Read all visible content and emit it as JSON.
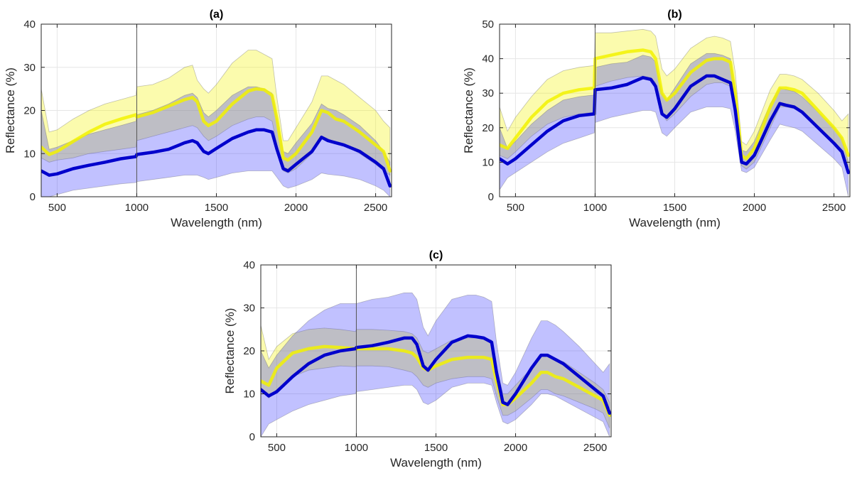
{
  "chart_data": [
    {
      "type": "line",
      "title": "(a)",
      "xlabel": "Wavelength (nm)",
      "ylabel": "Reflectance (%)",
      "xlim": [
        400,
        2600
      ],
      "ylim": [
        0,
        40
      ],
      "xticks": [
        "500",
        "1000",
        "1500",
        "2000",
        "2500"
      ],
      "yticks": [
        "0",
        "10",
        "20",
        "30",
        "40"
      ],
      "grid": true,
      "series": [
        {
          "color": "#f2f200",
          "x": [
            400,
            450,
            500,
            600,
            700,
            800,
            900,
            995,
            1000,
            1100,
            1200,
            1300,
            1350,
            1380,
            1420,
            1450,
            1500,
            1600,
            1700,
            1750,
            1800,
            1850,
            1880,
            1920,
            1950,
            2000,
            2100,
            2160,
            2200,
            2250,
            2300,
            2400,
            2500,
            2550,
            2590
          ],
          "mean": [
            11.5,
            9.8,
            10.5,
            12.8,
            15,
            16.8,
            18,
            19,
            18.5,
            19.5,
            21,
            22.5,
            23,
            22,
            17.5,
            16.5,
            17.5,
            21.5,
            24.5,
            25,
            24.8,
            23.5,
            18,
            9,
            8.5,
            10,
            15,
            20,
            19.5,
            18,
            17.5,
            15,
            12,
            10.5,
            6
          ],
          "upper": [
            25,
            15,
            15.5,
            18,
            20,
            21.5,
            22.5,
            23.5,
            25.5,
            26,
            27.5,
            30,
            30.5,
            27,
            25,
            24,
            26,
            31,
            34,
            34,
            33,
            32,
            23,
            13,
            13,
            16,
            22,
            28,
            28,
            27,
            26,
            23,
            20,
            17.5,
            16
          ],
          "lower": [
            9,
            8,
            8.5,
            9,
            10,
            10.5,
            11,
            11.5,
            13,
            14,
            15,
            16,
            16.5,
            16,
            14,
            13,
            14,
            16.5,
            18,
            18.5,
            18.5,
            17.5,
            12,
            6,
            5.5,
            6.5,
            10,
            14,
            13.5,
            12.5,
            12,
            10,
            7.5,
            6,
            5
          ]
        },
        {
          "color": "#0000cc",
          "x": [
            400,
            450,
            500,
            600,
            700,
            800,
            900,
            995,
            1000,
            1100,
            1200,
            1300,
            1350,
            1380,
            1420,
            1450,
            1500,
            1600,
            1700,
            1750,
            1800,
            1850,
            1880,
            1920,
            1950,
            2000,
            2100,
            2160,
            2200,
            2250,
            2300,
            2400,
            2500,
            2550,
            2590
          ],
          "mean": [
            6,
            5,
            5.3,
            6.5,
            7.3,
            8,
            8.8,
            9.3,
            9.8,
            10.3,
            11,
            12.5,
            13,
            12.5,
            10.5,
            10,
            11.2,
            13.5,
            15,
            15.5,
            15.5,
            15,
            11,
            6.5,
            6,
            7.5,
            10.5,
            13.8,
            13,
            12.5,
            12,
            10.5,
            8,
            6.5,
            2.5
          ],
          "upper": [
            20,
            11,
            11.5,
            13,
            14.5,
            15.5,
            16.5,
            17.5,
            19,
            20,
            21.5,
            23.5,
            24,
            23,
            19.5,
            18.5,
            20,
            23.5,
            25.5,
            25.5,
            25,
            24,
            18,
            10.5,
            10,
            12.5,
            17,
            21.5,
            20.5,
            20,
            19,
            16.5,
            13,
            10.5,
            8
          ],
          "lower": [
            0,
            0,
            0.5,
            1.5,
            2,
            2.5,
            3,
            3.3,
            3.5,
            4,
            4.5,
            5,
            5,
            5,
            4.5,
            4,
            4.5,
            5.5,
            6,
            6,
            6,
            6,
            4.5,
            2.5,
            2,
            2.5,
            4,
            5.5,
            5.2,
            5,
            4.8,
            4,
            2.5,
            1.5,
            0
          ]
        }
      ]
    },
    {
      "type": "line",
      "title": "(b)",
      "xlabel": "Wavelength (nm)",
      "ylabel": "Reflectance (%)",
      "xlim": [
        400,
        2600
      ],
      "ylim": [
        0,
        50
      ],
      "xticks": [
        "500",
        "1000",
        "1500",
        "2000",
        "2500"
      ],
      "yticks": [
        "0",
        "10",
        "20",
        "30",
        "40",
        "50"
      ],
      "grid": true,
      "series": [
        {
          "color": "#f2f200",
          "x": [
            400,
            450,
            500,
            600,
            700,
            800,
            900,
            995,
            1000,
            1100,
            1200,
            1300,
            1350,
            1380,
            1420,
            1450,
            1500,
            1600,
            1700,
            1750,
            1800,
            1850,
            1880,
            1920,
            1950,
            2000,
            2100,
            2160,
            2200,
            2250,
            2300,
            2400,
            2500,
            2550,
            2590
          ],
          "mean": [
            15,
            14,
            17,
            23,
            27.5,
            30,
            31,
            31.5,
            40,
            41,
            42,
            42.5,
            42,
            40,
            30,
            28,
            30,
            36,
            39.5,
            40,
            40,
            39,
            30,
            12,
            11,
            14,
            26,
            31.5,
            31.5,
            31,
            30,
            25,
            20,
            17,
            12
          ],
          "upper": [
            26,
            19,
            23,
            29,
            34,
            36.5,
            37.5,
            38,
            47.5,
            47.5,
            48,
            48.5,
            48,
            46.5,
            37,
            35,
            37,
            43,
            46,
            46.5,
            46,
            45,
            36,
            16,
            15,
            19,
            31,
            35.5,
            35.5,
            35,
            34,
            30,
            25,
            22,
            24
          ],
          "lower": [
            12,
            11,
            13,
            17.5,
            21,
            23,
            24,
            24.5,
            32,
            33.5,
            34.5,
            35,
            34.5,
            33,
            24,
            22,
            24,
            29,
            32.5,
            33,
            33,
            32,
            24,
            9,
            8,
            10,
            20,
            26,
            26,
            25.5,
            24.5,
            20.5,
            16,
            13,
            8
          ]
        },
        {
          "color": "#0000cc",
          "x": [
            400,
            450,
            500,
            600,
            700,
            800,
            900,
            995,
            1000,
            1100,
            1200,
            1300,
            1350,
            1380,
            1420,
            1450,
            1500,
            1600,
            1700,
            1750,
            1800,
            1850,
            1880,
            1920,
            1950,
            2000,
            2100,
            2160,
            2200,
            2250,
            2300,
            2400,
            2500,
            2550,
            2590
          ],
          "mean": [
            11,
            9.5,
            11,
            15,
            19,
            22,
            23.5,
            24,
            31,
            31.5,
            32.5,
            34.5,
            34,
            32,
            24,
            23,
            25.5,
            32,
            35,
            35,
            34,
            33,
            25,
            10,
            9.5,
            12,
            22,
            27,
            26.5,
            26,
            24.5,
            20,
            15.5,
            13,
            7
          ],
          "upper": [
            20,
            14,
            16,
            21,
            25,
            28,
            29,
            29.5,
            37.5,
            38.5,
            39,
            41,
            40.5,
            39,
            30,
            28,
            31.5,
            38.5,
            41.5,
            41.5,
            41,
            40,
            30,
            13.5,
            13,
            16,
            27,
            31.5,
            31,
            30.5,
            29,
            24.5,
            20,
            17,
            10
          ],
          "lower": [
            2,
            5.5,
            7,
            10,
            13,
            15.5,
            17,
            18.5,
            21.5,
            23,
            24,
            25,
            25,
            24.5,
            18.5,
            17.5,
            20,
            24.5,
            26,
            26,
            26,
            25.5,
            19,
            7.5,
            7,
            8.5,
            16.5,
            21,
            20.5,
            20,
            19,
            15,
            11,
            8.5,
            0
          ]
        }
      ]
    },
    {
      "type": "line",
      "title": "(c)",
      "xlabel": "Wavelength (nm)",
      "ylabel": "Reflectance (%)",
      "xlim": [
        400,
        2600
      ],
      "ylim": [
        0,
        40
      ],
      "xticks": [
        "500",
        "1000",
        "1500",
        "2000",
        "2500"
      ],
      "yticks": [
        "0",
        "10",
        "20",
        "30",
        "40"
      ],
      "grid": true,
      "series": [
        {
          "color": "#f2f200",
          "x": [
            400,
            450,
            500,
            600,
            700,
            800,
            900,
            995,
            1000,
            1100,
            1200,
            1300,
            1350,
            1380,
            1420,
            1450,
            1500,
            1600,
            1700,
            1750,
            1800,
            1850,
            1880,
            1920,
            1950,
            2000,
            2100,
            2160,
            2200,
            2250,
            2300,
            2400,
            2500,
            2550,
            2590
          ],
          "mean": [
            13,
            12,
            16,
            19.5,
            20.5,
            21,
            20.8,
            20.5,
            20.5,
            20.5,
            20.5,
            20,
            19.5,
            18.5,
            16,
            15.5,
            16.5,
            18,
            18.5,
            18.5,
            18.5,
            18,
            13,
            7.5,
            7.5,
            9,
            12.5,
            15,
            15,
            14,
            13.5,
            11.5,
            9.5,
            8.5,
            5
          ],
          "upper": [
            26,
            18,
            21,
            24,
            25,
            25.3,
            25,
            24.5,
            25,
            25,
            24.8,
            24.5,
            24,
            23,
            20,
            19.5,
            20.5,
            22.5,
            23,
            23,
            23,
            22.5,
            16.5,
            10,
            10,
            12,
            16,
            19,
            19,
            18,
            17.5,
            15,
            12.5,
            11,
            8
          ],
          "lower": [
            11,
            9,
            11,
            14,
            15.5,
            16,
            16.5,
            16.3,
            16.5,
            16.5,
            16.3,
            15.5,
            15,
            14,
            12,
            11.5,
            12.5,
            13.5,
            14,
            14,
            14,
            13.5,
            9.5,
            5,
            5,
            6,
            9,
            11,
            11,
            10,
            9.5,
            8,
            6.5,
            5.5,
            2
          ]
        },
        {
          "color": "#0000cc",
          "x": [
            400,
            450,
            500,
            600,
            700,
            800,
            900,
            995,
            1000,
            1100,
            1200,
            1300,
            1350,
            1380,
            1420,
            1450,
            1500,
            1600,
            1700,
            1750,
            1800,
            1850,
            1880,
            1920,
            1950,
            2000,
            2100,
            2160,
            2200,
            2250,
            2300,
            2400,
            2500,
            2550,
            2590
          ],
          "mean": [
            11,
            9.5,
            10.5,
            14,
            17,
            19,
            20,
            20.5,
            20.8,
            21.2,
            22,
            23,
            23,
            21.5,
            16.5,
            15.5,
            18,
            22,
            23.5,
            23.3,
            23,
            22,
            15,
            8,
            7.5,
            10,
            16,
            19,
            19,
            18,
            17,
            14,
            11,
            9.5,
            5.5
          ],
          "upper": [
            20,
            16,
            19,
            23.5,
            27,
            29.5,
            31,
            31,
            31,
            32,
            32.5,
            33.5,
            33.5,
            32,
            25.5,
            23.5,
            27,
            32,
            33,
            33,
            32.5,
            31.5,
            22,
            12.5,
            12,
            15,
            23,
            27,
            27,
            26,
            24.5,
            21,
            17,
            15,
            17
          ],
          "lower": [
            0,
            3,
            4,
            6,
            7.5,
            8.5,
            9.5,
            10,
            10.5,
            11,
            11.5,
            12,
            12,
            11,
            8,
            7.5,
            8.5,
            11.5,
            12.5,
            12.5,
            12.5,
            12,
            8,
            3.5,
            3,
            4,
            7.5,
            10,
            10,
            9.5,
            8.5,
            6.5,
            4.5,
            3.5,
            0
          ]
        }
      ]
    }
  ]
}
